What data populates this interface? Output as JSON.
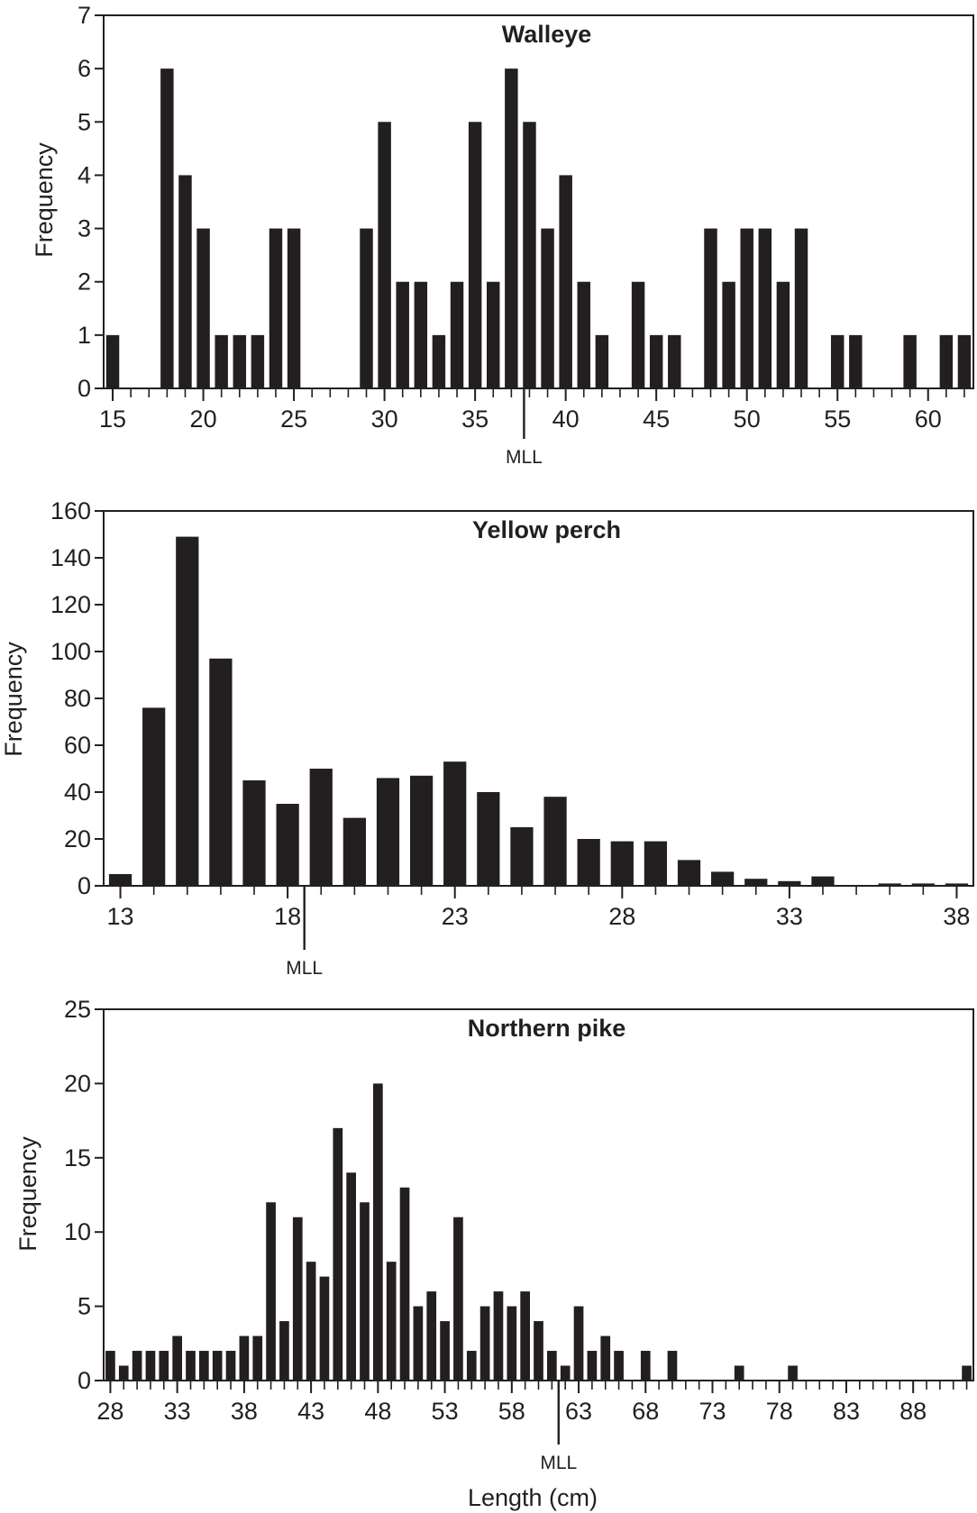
{
  "figure": {
    "xlabel": "Length (cm)"
  },
  "chart_data": [
    {
      "type": "bar",
      "title": "Walleye",
      "xlabel": "",
      "ylabel": "Frequency",
      "marker_label": "MLL",
      "marker_x": 37.7,
      "ylim": [
        0,
        7
      ],
      "yticks": [
        0,
        1,
        2,
        3,
        4,
        5,
        6,
        7
      ],
      "xrange": [
        14.5,
        62.5
      ],
      "xticks": [
        15,
        20,
        25,
        30,
        35,
        40,
        45,
        50,
        55,
        60
      ],
      "x": [
        15,
        16,
        17,
        18,
        19,
        20,
        21,
        22,
        23,
        24,
        25,
        26,
        27,
        28,
        29,
        30,
        31,
        32,
        33,
        34,
        35,
        36,
        37,
        38,
        39,
        40,
        41,
        42,
        43,
        44,
        45,
        46,
        47,
        48,
        49,
        50,
        51,
        52,
        53,
        54,
        55,
        56,
        57,
        58,
        59,
        60,
        61,
        62
      ],
      "values": [
        1,
        0,
        0,
        6,
        4,
        3,
        1,
        1,
        1,
        3,
        3,
        0,
        0,
        0,
        3,
        5,
        2,
        2,
        1,
        2,
        5,
        2,
        6,
        5,
        3,
        4,
        2,
        1,
        0,
        2,
        1,
        1,
        0,
        3,
        2,
        3,
        3,
        2,
        3,
        0,
        1,
        1,
        0,
        0,
        1,
        0,
        1,
        1
      ],
      "grid": false
    },
    {
      "type": "bar",
      "title": "Yellow perch",
      "xlabel": "",
      "ylabel": "Frequency",
      "marker_label": "MLL",
      "marker_x": 18.5,
      "ylim": [
        0,
        160
      ],
      "yticks": [
        0,
        20,
        40,
        60,
        80,
        100,
        120,
        140,
        160
      ],
      "xrange": [
        12.5,
        38.5
      ],
      "xticks": [
        13,
        18,
        23,
        28,
        33,
        38
      ],
      "x": [
        13,
        14,
        15,
        16,
        17,
        18,
        19,
        20,
        21,
        22,
        23,
        24,
        25,
        26,
        27,
        28,
        29,
        30,
        31,
        32,
        33,
        34,
        35,
        36,
        37,
        38
      ],
      "values": [
        5,
        76,
        149,
        97,
        45,
        35,
        50,
        29,
        46,
        47,
        53,
        40,
        25,
        38,
        20,
        19,
        19,
        11,
        6,
        3,
        2,
        4,
        0,
        1,
        1,
        1
      ],
      "grid": false
    },
    {
      "type": "bar",
      "title": "Northern pike",
      "xlabel": "Length (cm)",
      "ylabel": "Frequency",
      "marker_label": "MLL",
      "marker_x": 61.5,
      "ylim": [
        0,
        25
      ],
      "yticks": [
        0,
        5,
        10,
        15,
        20,
        25
      ],
      "xrange": [
        27.5,
        92.5
      ],
      "xticks": [
        28,
        33,
        38,
        43,
        48,
        53,
        58,
        63,
        68,
        73,
        78,
        83,
        88
      ],
      "x": [
        28,
        29,
        30,
        31,
        32,
        33,
        34,
        35,
        36,
        37,
        38,
        39,
        40,
        41,
        42,
        43,
        44,
        45,
        46,
        47,
        48,
        49,
        50,
        51,
        52,
        53,
        54,
        55,
        56,
        57,
        58,
        59,
        60,
        61,
        62,
        63,
        64,
        65,
        66,
        67,
        68,
        69,
        70,
        71,
        72,
        73,
        74,
        75,
        76,
        77,
        78,
        79,
        80,
        81,
        82,
        83,
        84,
        85,
        86,
        87,
        88,
        89,
        90,
        91,
        92
      ],
      "values": [
        2,
        1,
        2,
        2,
        2,
        3,
        2,
        2,
        2,
        2,
        3,
        3,
        12,
        4,
        11,
        8,
        7,
        17,
        14,
        12,
        20,
        8,
        13,
        5,
        6,
        4,
        11,
        2,
        5,
        6,
        5,
        6,
        4,
        2,
        1,
        5,
        2,
        3,
        2,
        0,
        2,
        0,
        2,
        0,
        0,
        0,
        0,
        1,
        0,
        0,
        0,
        1,
        0,
        0,
        0,
        0,
        0,
        0,
        0,
        0,
        0,
        0,
        0,
        0,
        1
      ],
      "grid": false
    }
  ]
}
